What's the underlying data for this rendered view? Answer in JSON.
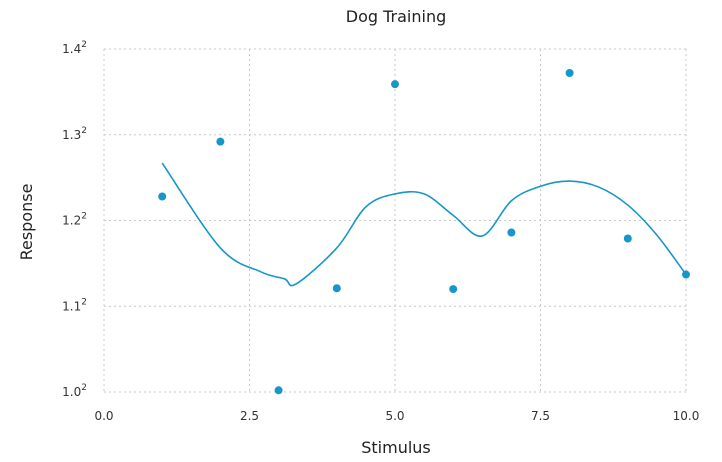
{
  "chart_data": {
    "type": "scatter",
    "title": "Dog Training",
    "xlabel": "Stimulus",
    "ylabel": "Response",
    "xlim": [
      0,
      10
    ],
    "ylim": [
      1.0,
      1.4
    ],
    "x_ticks": [
      0,
      2.5,
      5,
      7.5,
      10
    ],
    "x_tick_labels": [
      "0.0",
      "2.5",
      "5.0",
      "7.5",
      "10.0"
    ],
    "y_ticks": [
      1.0,
      1.1,
      1.2,
      1.3,
      1.4
    ],
    "y_tick_labels": [
      "1.0",
      "1.1",
      "1.2",
      "1.3",
      "1.4"
    ],
    "y_tick_exponent": "2",
    "y_scale": "squared",
    "grid": true,
    "series": [
      {
        "type": "scatter",
        "color": "#1796c9",
        "x": [
          1,
          2,
          3,
          4,
          5,
          6,
          7,
          8,
          9,
          10
        ],
        "y": [
          1.228,
          1.292,
          1.002,
          1.121,
          1.359,
          1.12,
          1.186,
          1.372,
          1.179,
          1.137
        ]
      },
      {
        "type": "line",
        "color": "#1796c9",
        "smooth": true,
        "x": [
          1,
          2,
          2.7,
          3.1,
          3.3,
          4,
          4.5,
          5,
          5.5,
          6,
          6.5,
          7,
          7.5,
          8,
          8.5,
          9,
          9.5,
          10
        ],
        "y": [
          1.267,
          1.168,
          1.14,
          1.132,
          1.126,
          1.168,
          1.216,
          1.231,
          1.231,
          1.206,
          1.182,
          1.223,
          1.24,
          1.246,
          1.239,
          1.218,
          1.183,
          1.137
        ]
      }
    ]
  }
}
